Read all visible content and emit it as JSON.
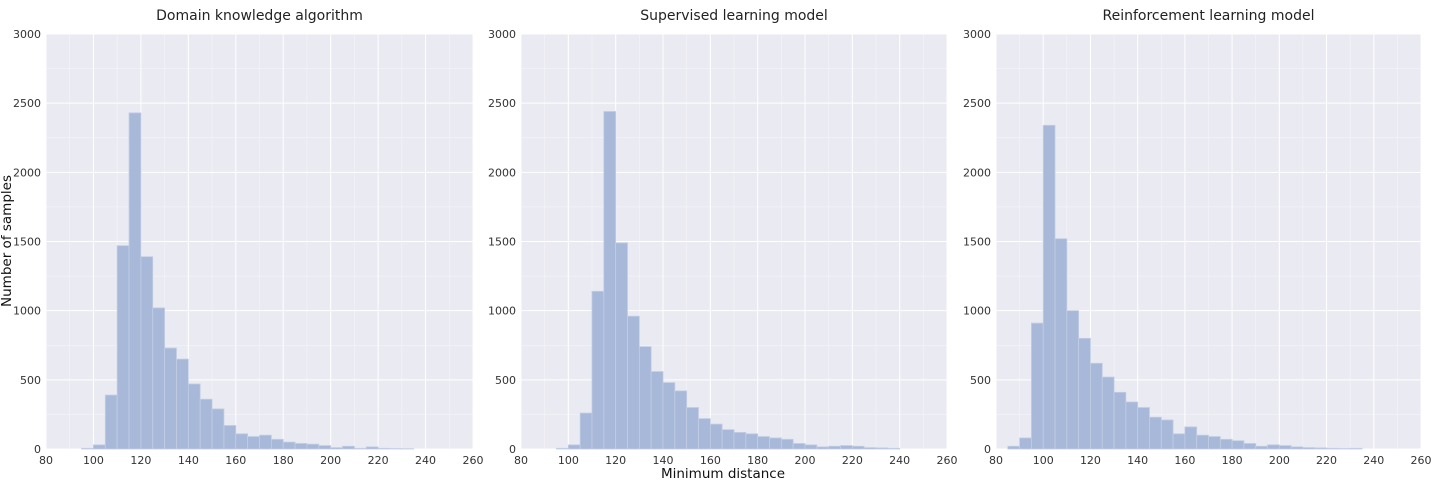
{
  "figure": {
    "shared_xlabel": "Minimum distance",
    "shared_ylabel": "Number of samples"
  },
  "style": {
    "panel_bg": "#EAEAF2",
    "grid": "#FFFFFF",
    "bar_fill": "#A7B8D9",
    "bar_edge": "#C3CEE4"
  },
  "chart_data": [
    {
      "type": "bar",
      "title": "Domain knowledge algorithm",
      "xlim": [
        80,
        260
      ],
      "ylim": [
        0,
        3000
      ],
      "xticks": [
        80,
        100,
        120,
        140,
        160,
        180,
        200,
        220,
        240,
        260
      ],
      "yticks": [
        0,
        500,
        1000,
        1500,
        2000,
        2500,
        3000
      ],
      "grid": true,
      "bin_width": 5,
      "bins": [
        {
          "x": 95,
          "y": 5
        },
        {
          "x": 100,
          "y": 30
        },
        {
          "x": 105,
          "y": 390
        },
        {
          "x": 110,
          "y": 1470
        },
        {
          "x": 115,
          "y": 2430
        },
        {
          "x": 120,
          "y": 1390
        },
        {
          "x": 125,
          "y": 1020
        },
        {
          "x": 130,
          "y": 730
        },
        {
          "x": 135,
          "y": 650
        },
        {
          "x": 140,
          "y": 470
        },
        {
          "x": 145,
          "y": 360
        },
        {
          "x": 150,
          "y": 290
        },
        {
          "x": 155,
          "y": 170
        },
        {
          "x": 160,
          "y": 110
        },
        {
          "x": 165,
          "y": 90
        },
        {
          "x": 170,
          "y": 100
        },
        {
          "x": 175,
          "y": 70
        },
        {
          "x": 180,
          "y": 50
        },
        {
          "x": 185,
          "y": 40
        },
        {
          "x": 190,
          "y": 35
        },
        {
          "x": 195,
          "y": 25
        },
        {
          "x": 200,
          "y": 10
        },
        {
          "x": 205,
          "y": 20
        },
        {
          "x": 210,
          "y": 5
        },
        {
          "x": 215,
          "y": 15
        },
        {
          "x": 220,
          "y": 5
        },
        {
          "x": 225,
          "y": 3
        },
        {
          "x": 230,
          "y": 2
        }
      ]
    },
    {
      "type": "bar",
      "title": "Supervised learning model",
      "xlim": [
        80,
        260
      ],
      "ylim": [
        0,
        3000
      ],
      "xticks": [
        80,
        100,
        120,
        140,
        160,
        180,
        200,
        220,
        240,
        260
      ],
      "yticks": [
        0,
        500,
        1000,
        1500,
        2000,
        2500,
        3000
      ],
      "grid": true,
      "bin_width": 5,
      "bins": [
        {
          "x": 95,
          "y": 5
        },
        {
          "x": 100,
          "y": 30
        },
        {
          "x": 105,
          "y": 260
        },
        {
          "x": 110,
          "y": 1140
        },
        {
          "x": 115,
          "y": 2440
        },
        {
          "x": 120,
          "y": 1490
        },
        {
          "x": 125,
          "y": 960
        },
        {
          "x": 130,
          "y": 740
        },
        {
          "x": 135,
          "y": 560
        },
        {
          "x": 140,
          "y": 480
        },
        {
          "x": 145,
          "y": 420
        },
        {
          "x": 150,
          "y": 300
        },
        {
          "x": 155,
          "y": 220
        },
        {
          "x": 160,
          "y": 180
        },
        {
          "x": 165,
          "y": 140
        },
        {
          "x": 170,
          "y": 120
        },
        {
          "x": 175,
          "y": 110
        },
        {
          "x": 180,
          "y": 90
        },
        {
          "x": 185,
          "y": 80
        },
        {
          "x": 190,
          "y": 70
        },
        {
          "x": 195,
          "y": 40
        },
        {
          "x": 200,
          "y": 30
        },
        {
          "x": 205,
          "y": 15
        },
        {
          "x": 210,
          "y": 20
        },
        {
          "x": 215,
          "y": 25
        },
        {
          "x": 220,
          "y": 20
        },
        {
          "x": 225,
          "y": 10
        },
        {
          "x": 230,
          "y": 8
        },
        {
          "x": 235,
          "y": 5
        }
      ]
    },
    {
      "type": "bar",
      "title": "Reinforcement learning model",
      "xlim": [
        80,
        260
      ],
      "ylim": [
        0,
        3000
      ],
      "xticks": [
        80,
        100,
        120,
        140,
        160,
        180,
        200,
        220,
        240,
        260
      ],
      "yticks": [
        0,
        500,
        1000,
        1500,
        2000,
        2500,
        3000
      ],
      "grid": true,
      "bin_width": 5,
      "bins": [
        {
          "x": 85,
          "y": 20
        },
        {
          "x": 90,
          "y": 80
        },
        {
          "x": 95,
          "y": 910
        },
        {
          "x": 100,
          "y": 2340
        },
        {
          "x": 105,
          "y": 1520
        },
        {
          "x": 110,
          "y": 1000
        },
        {
          "x": 115,
          "y": 800
        },
        {
          "x": 120,
          "y": 620
        },
        {
          "x": 125,
          "y": 520
        },
        {
          "x": 130,
          "y": 410
        },
        {
          "x": 135,
          "y": 340
        },
        {
          "x": 140,
          "y": 300
        },
        {
          "x": 145,
          "y": 230
        },
        {
          "x": 150,
          "y": 210
        },
        {
          "x": 155,
          "y": 110
        },
        {
          "x": 160,
          "y": 160
        },
        {
          "x": 165,
          "y": 100
        },
        {
          "x": 170,
          "y": 90
        },
        {
          "x": 175,
          "y": 70
        },
        {
          "x": 180,
          "y": 60
        },
        {
          "x": 185,
          "y": 40
        },
        {
          "x": 190,
          "y": 20
        },
        {
          "x": 195,
          "y": 30
        },
        {
          "x": 200,
          "y": 25
        },
        {
          "x": 205,
          "y": 15
        },
        {
          "x": 210,
          "y": 10
        },
        {
          "x": 215,
          "y": 8
        },
        {
          "x": 220,
          "y": 5
        },
        {
          "x": 225,
          "y": 3
        },
        {
          "x": 230,
          "y": 5
        }
      ]
    }
  ]
}
